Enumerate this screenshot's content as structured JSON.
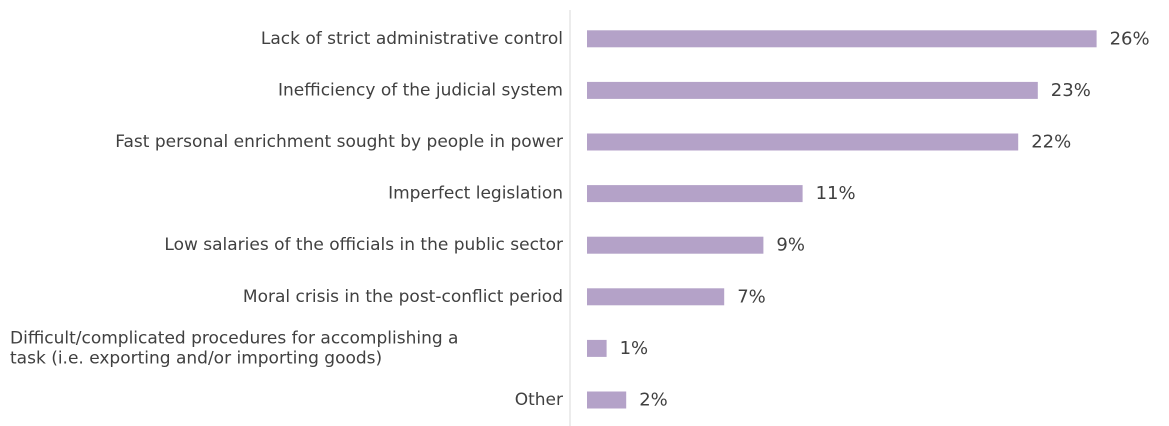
{
  "chart_data": {
    "type": "bar",
    "orientation": "horizontal",
    "categories": [
      "Lack of strict administrative control",
      "Inefficiency of the judicial system",
      "Fast personal enrichment sought by people in power",
      "Imperfect legislation",
      "Low salaries of the officials in the public sector",
      "Moral crisis in the post-conflict period",
      "Difficult/complicated procedures for accomplishing a task (i.e. exporting and/or importing goods)",
      "Other"
    ],
    "category_lines": [
      [
        "Lack of strict administrative control"
      ],
      [
        "Inefficiency of the judicial system"
      ],
      [
        "Fast personal enrichment sought by people in power"
      ],
      [
        "Imperfect legislation"
      ],
      [
        "Low salaries of the officials in the public sector"
      ],
      [
        "Moral crisis in the post-conflict period"
      ],
      [
        "Difficult/complicated procedures for accomplishing a",
        "task (i.e. exporting and/or importing goods)"
      ],
      [
        "Other"
      ]
    ],
    "values": [
      26,
      23,
      22,
      11,
      9,
      7,
      1,
      2
    ],
    "value_labels": [
      "26%",
      "23%",
      "22%",
      "11%",
      "9%",
      "7%",
      "1%",
      "2%"
    ],
    "unit": "%",
    "title": "",
    "xlabel": "",
    "ylabel": "",
    "xlim": [
      0,
      26
    ],
    "grid": false,
    "legend": "none",
    "bar_color": "#b4a2c8",
    "text_color": "#404040",
    "axis_color": "#d9d9d9"
  }
}
